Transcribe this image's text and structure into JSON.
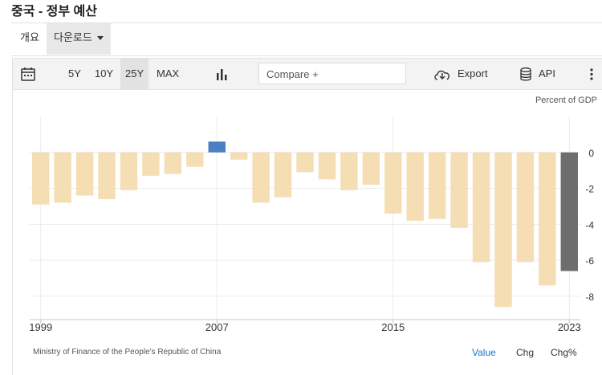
{
  "page": {
    "title": "중국 - 정부 예산"
  },
  "tabs": {
    "overview": "개요",
    "download": "다운로드"
  },
  "toolbar": {
    "ranges": [
      "5Y",
      "10Y",
      "25Y",
      "MAX"
    ],
    "active_range": "25Y",
    "compare_placeholder": "Compare +",
    "export_label": "Export",
    "api_label": "API",
    "icons": [
      "calendar-icon",
      "bar-chart-icon",
      "cloud-download-icon",
      "database-icon",
      "more-vertical-icon"
    ]
  },
  "chart_data": {
    "type": "bar",
    "unit_label": "Percent of GDP",
    "x": [
      1999,
      2000,
      2001,
      2002,
      2003,
      2004,
      2005,
      2006,
      2007,
      2008,
      2009,
      2010,
      2011,
      2012,
      2013,
      2014,
      2015,
      2016,
      2017,
      2018,
      2019,
      2020,
      2021,
      2022,
      2023
    ],
    "values": [
      -2.9,
      -2.8,
      -2.4,
      -2.6,
      -2.1,
      -1.3,
      -1.2,
      -0.8,
      0.6,
      -0.4,
      -2.8,
      -2.5,
      -1.1,
      -1.5,
      -2.1,
      -1.8,
      -3.4,
      -3.8,
      -3.7,
      -4.2,
      -6.1,
      -8.6,
      -6.1,
      -7.4,
      -6.6
    ],
    "colors": {
      "negative": "#f5deb3",
      "positive": "#4a7fc1",
      "latest": "#6d6d6d"
    },
    "xticks": [
      1999,
      2007,
      2015,
      2023
    ],
    "yticks": [
      0,
      -2,
      -4,
      -6,
      -8
    ],
    "ylim": [
      -9.3,
      2
    ],
    "grid": true,
    "source": "Ministry of Finance of the People's Republic of China"
  },
  "footer": {
    "value_label": "Value",
    "chg_label": "Chg",
    "chgp_label": "Chg%"
  }
}
